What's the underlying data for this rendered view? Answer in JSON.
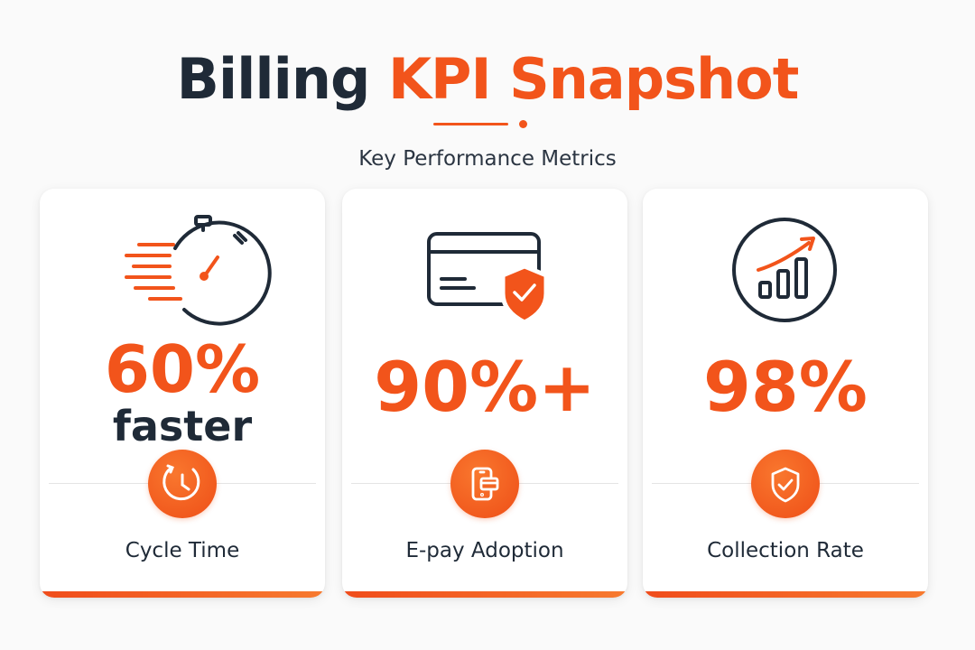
{
  "header": {
    "title_part1": "Billing",
    "title_part2": "KPI Snapshot",
    "subtitle": "Key Performance Metrics"
  },
  "colors": {
    "accent": "#f2541b",
    "dark": "#1f2a37",
    "background": "#fafafa",
    "card": "#ffffff"
  },
  "cards": [
    {
      "icon": "stopwatch-speed-icon",
      "metric": "60%",
      "metric_sub": "faster",
      "badge_icon": "clock-icon",
      "label": "Cycle Time"
    },
    {
      "icon": "credit-card-shield-icon",
      "metric": "90%+",
      "badge_icon": "mobile-payment-icon",
      "label": "E-pay Adoption"
    },
    {
      "icon": "growth-chart-icon",
      "metric": "98%",
      "badge_icon": "shield-check-icon",
      "label": "Collection Rate"
    }
  ]
}
